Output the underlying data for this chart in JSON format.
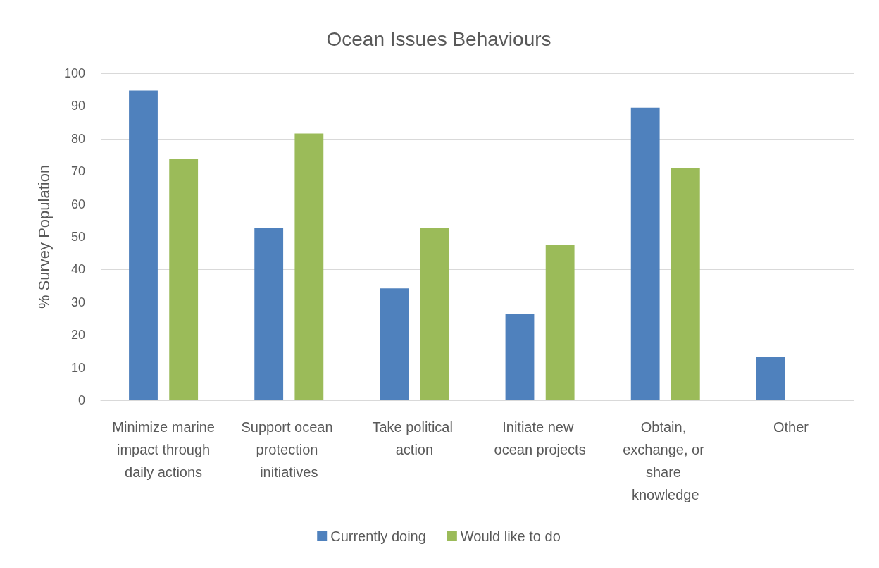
{
  "chart_data": {
    "type": "bar",
    "title": "Ocean Issues Behaviours",
    "ylabel": "% Survey Population",
    "categories": [
      "Minimize marine impact through daily actions",
      "Support ocean protection initiatives",
      "Take political action",
      "Initiate new ocean projects",
      "Obtain, exchange, or share knowledge",
      "Other"
    ],
    "series": [
      {
        "name": "Currently doing",
        "color": "#4f81bd",
        "values": [
          94.7,
          52.6,
          34.2,
          26.3,
          89.5,
          13.2
        ]
      },
      {
        "name": "Would like to do",
        "color": "#9bbb59",
        "values": [
          73.7,
          81.6,
          52.6,
          47.4,
          71.1,
          0
        ]
      }
    ],
    "ylim": [
      0,
      100
    ],
    "yticks": [
      0,
      10,
      20,
      30,
      40,
      50,
      60,
      70,
      80,
      90,
      100
    ],
    "grid": "y",
    "legend": "bottom"
  }
}
